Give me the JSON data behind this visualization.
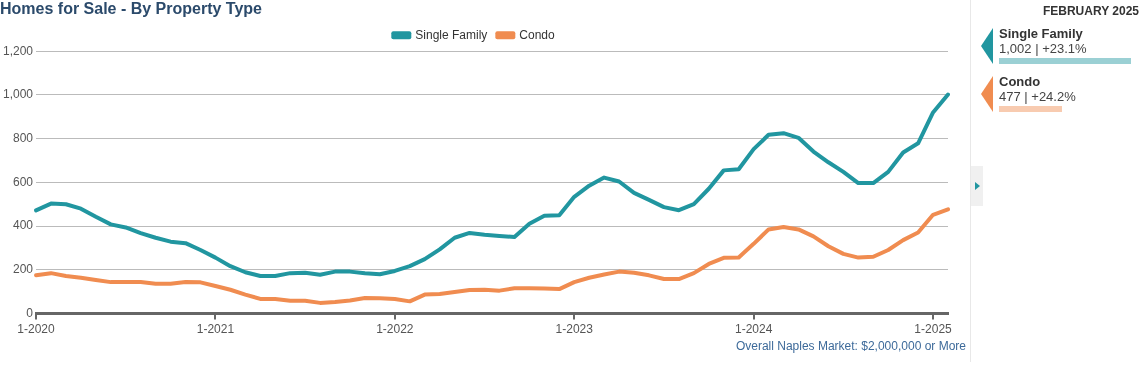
{
  "chart_data": {
    "type": "line",
    "title": "Homes for Sale - By Property Type",
    "categories": [
      "1-2020",
      null,
      null,
      null,
      null,
      null,
      null,
      null,
      null,
      null,
      null,
      null,
      "1-2021",
      null,
      null,
      null,
      null,
      null,
      null,
      null,
      null,
      null,
      null,
      null,
      "1-2022",
      null,
      null,
      null,
      null,
      null,
      null,
      null,
      null,
      null,
      null,
      null,
      "1-2023",
      null,
      null,
      null,
      null,
      null,
      null,
      null,
      null,
      null,
      null,
      null,
      "1-2024",
      null,
      null,
      null,
      null,
      null,
      null,
      null,
      null,
      null,
      null,
      null,
      "1-2025",
      null
    ],
    "series": [
      {
        "name": "Single Family",
        "color": "#2196a0",
        "values": [
          472,
          503,
          500,
          480,
          443,
          408,
          394,
          368,
          347,
          329,
          322,
          291,
          256,
          217,
          189,
          172,
          172,
          185,
          187,
          178,
          192,
          192,
          185,
          180,
          195,
          217,
          249,
          294,
          347,
          369,
          361,
          355,
          350,
          411,
          448,
          450,
          534,
          585,
          622,
          604,
          552,
          520,
          487,
          473,
          501,
          571,
          655,
          660,
          752,
          818,
          825,
          804,
          741,
          692,
          648,
          597,
          597,
          648,
          737,
          779,
          920,
          1002
        ]
      },
      {
        "name": "Condo",
        "color": "#f08c50",
        "values": [
          175,
          185,
          172,
          164,
          154,
          144,
          144,
          144,
          137,
          137,
          144,
          143,
          126,
          109,
          87,
          67,
          67,
          59,
          59,
          49,
          53,
          60,
          71,
          70,
          67,
          56,
          87,
          90,
          99,
          108,
          109,
          105,
          116,
          116,
          115,
          112,
          144,
          164,
          179,
          192,
          187,
          175,
          158,
          158,
          185,
          227,
          255,
          257,
          319,
          385,
          396,
          385,
          353,
          308,
          273,
          256,
          260,
          291,
          336,
          371,
          452,
          477
        ]
      }
    ],
    "ylim": [
      0,
      1200
    ],
    "yticks": [
      0,
      200,
      400,
      600,
      800,
      {
        "value": 1000,
        "label": "1,000"
      },
      {
        "value": 1200,
        "label": "1,200"
      }
    ],
    "grid": "y",
    "legend": "top",
    "marker": "none",
    "line_style": "solid",
    "annotations": [
      "Overall Naples Market: $2,000,000 or More",
      "FEBRUARY 2025",
      "1,002 | +23.1%",
      "477 | +24.2%"
    ]
  }
}
